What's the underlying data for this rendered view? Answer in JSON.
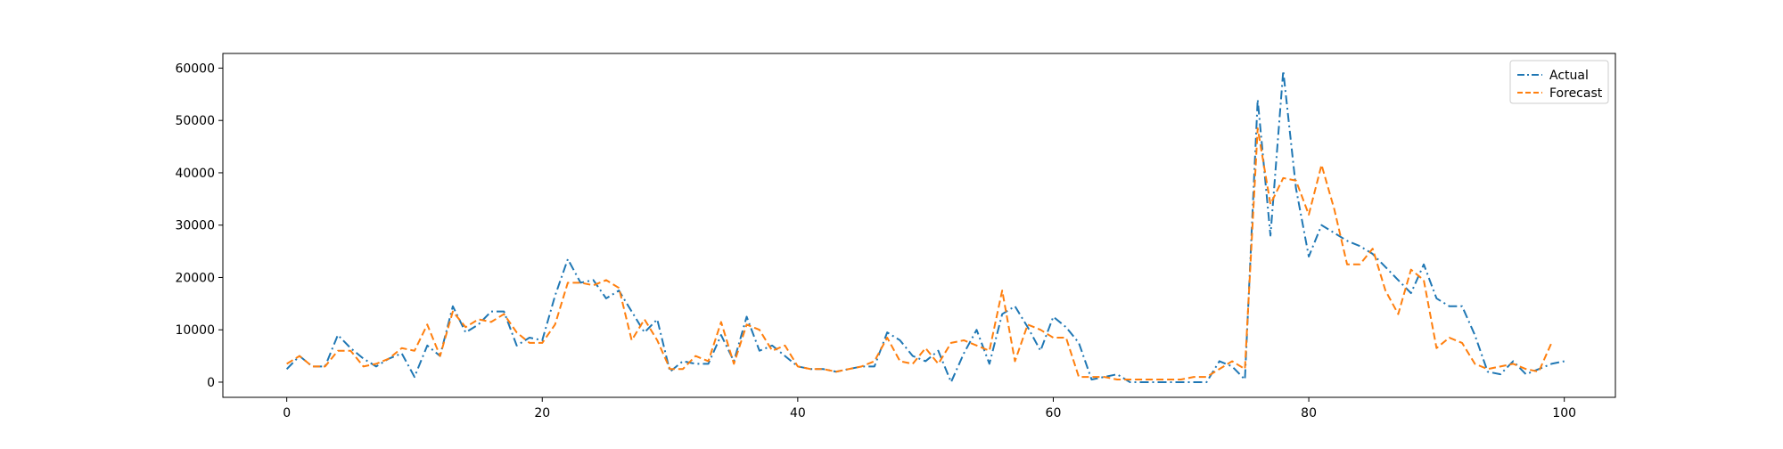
{
  "chart_data": {
    "type": "line",
    "title": "",
    "xlabel": "",
    "ylabel": "",
    "xlim": [
      -5,
      104
    ],
    "ylim": [
      -2900,
      62800
    ],
    "x_ticks": [
      0,
      20,
      40,
      60,
      80,
      100
    ],
    "y_ticks": [
      0,
      10000,
      20000,
      30000,
      40000,
      50000,
      60000
    ],
    "x_tick_labels": [
      "0",
      "20",
      "40",
      "60",
      "80",
      "100"
    ],
    "y_tick_labels": [
      "0",
      "10000",
      "20000",
      "30000",
      "40000",
      "50000",
      "60000"
    ],
    "grid": false,
    "legend_position": "top-right",
    "series": [
      {
        "name": "Actual",
        "color": "#1f77b4",
        "line_style": "dashdot",
        "values": [
          2500,
          5000,
          3000,
          3000,
          9000,
          6500,
          4500,
          3000,
          4500,
          5500,
          1000,
          7000,
          5000,
          14500,
          9500,
          11000,
          13500,
          13500,
          7000,
          8500,
          8000,
          16500,
          23500,
          19000,
          19500,
          16000,
          17500,
          13500,
          9500,
          12000,
          2000,
          4000,
          3500,
          3500,
          9000,
          4000,
          12500,
          6000,
          7000,
          5000,
          3000,
          2500,
          2500,
          2000,
          2500,
          3000,
          3000,
          9500,
          8000,
          5000,
          4000,
          6000,
          0,
          5500,
          10000,
          3500,
          13000,
          14500,
          10500,
          6000,
          12500,
          10500,
          7500,
          500,
          1000,
          1500,
          0,
          0,
          0,
          0,
          0,
          0,
          0,
          4000,
          3000,
          500,
          54000,
          28000,
          59500,
          37000,
          24000,
          30000,
          28500,
          27000,
          26000,
          24500,
          22000,
          19500,
          17000,
          22500,
          16000,
          14500,
          14500,
          9000,
          2000,
          1500,
          4000,
          1500,
          2500,
          3500,
          4000
        ]
      },
      {
        "name": "Forecast",
        "color": "#ff7f0e",
        "line_style": "dashed",
        "values": [
          3500,
          5000,
          3000,
          3000,
          6000,
          6000,
          3000,
          3500,
          4500,
          6500,
          6000,
          11000,
          5000,
          13500,
          10500,
          12000,
          11500,
          13000,
          9500,
          7500,
          7500,
          11000,
          19000,
          19000,
          18500,
          19500,
          18000,
          8000,
          12000,
          8000,
          2500,
          2500,
          5000,
          4000,
          11500,
          3500,
          11000,
          10000,
          6000,
          7000,
          3000,
          2500,
          2500,
          2000,
          2500,
          3000,
          4000,
          8500,
          4000,
          3500,
          6500,
          3500,
          7500,
          8000,
          7000,
          6000,
          17500,
          4000,
          11000,
          10000,
          8500,
          8500,
          1000,
          1000,
          1000,
          500,
          500,
          500,
          500,
          500,
          500,
          1000,
          1000,
          2500,
          4000,
          2500,
          48500,
          34000,
          39000,
          38500,
          32000,
          41500,
          33000,
          22500,
          22500,
          25500,
          17500,
          13000,
          21500,
          19500,
          6500,
          8500,
          7500,
          3500,
          2500,
          3000,
          3500,
          2500,
          2000,
          7500
        ]
      }
    ]
  }
}
